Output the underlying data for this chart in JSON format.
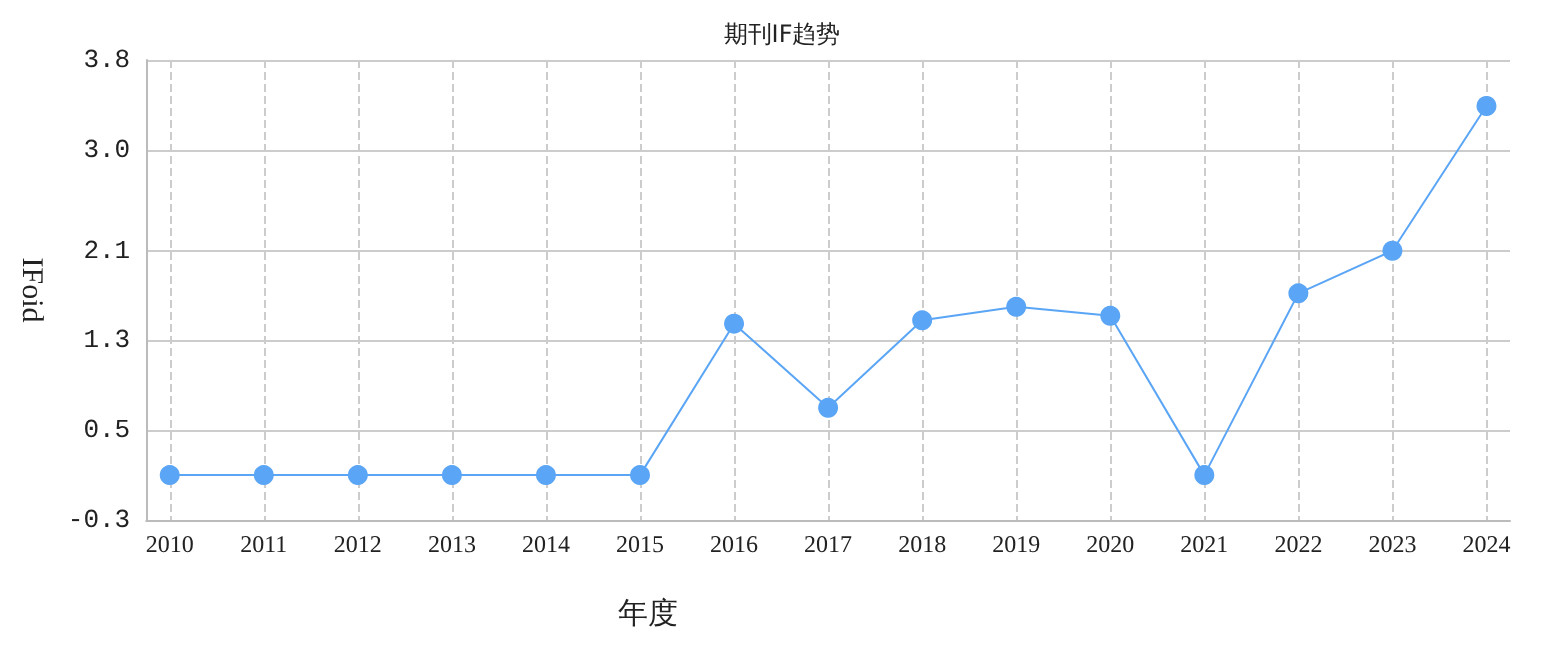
{
  "chart_data": {
    "type": "line",
    "title": "期刊IF趋势",
    "xlabel": "年度",
    "ylabel": "IFoid",
    "x": [
      2010,
      2011,
      2012,
      2013,
      2014,
      2015,
      2016,
      2017,
      2018,
      2019,
      2020,
      2021,
      2022,
      2023,
      2024
    ],
    "series": [
      {
        "color": "#5aa5f5",
        "values": [
          0.1,
          0.1,
          0.1,
          0.1,
          0.1,
          0.1,
          1.45,
          0.7,
          1.48,
          1.6,
          1.52,
          0.1,
          1.72,
          2.1,
          3.39
        ]
      }
    ],
    "xlim": [
      2009.75,
      2024.25
    ],
    "xticks": [
      2010,
      2011,
      2012,
      2013,
      2014,
      2015,
      2016,
      2017,
      2018,
      2019,
      2020,
      2021,
      2022,
      2023,
      2024
    ],
    "ylim": [
      -0.3,
      3.8
    ],
    "yticks": [
      -0.3,
      0.5,
      1.3,
      2.1,
      {
        "value": 3.0,
        "label": "3.0"
      },
      3.8
    ],
    "grid": true,
    "marker": "circle",
    "line_style": "solid"
  }
}
